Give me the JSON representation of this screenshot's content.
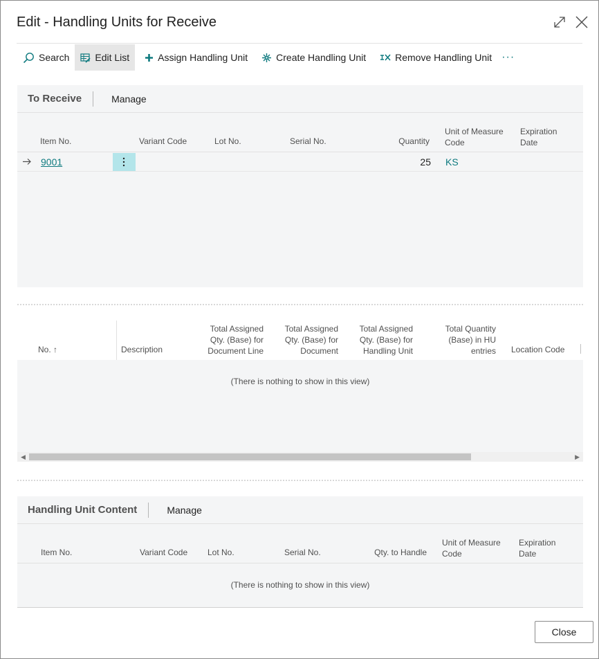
{
  "dialog": {
    "title": "Edit - Handling Units for Receive"
  },
  "toolbar": {
    "search": "Search",
    "edit_list": "Edit List",
    "assign": "Assign Handling Unit",
    "create": "Create Handling Unit",
    "remove": "Remove Handling Unit",
    "more": "···"
  },
  "to_receive": {
    "title": "To Receive",
    "manage": "Manage",
    "columns": {
      "item_no": "Item No.",
      "variant": "Variant Code",
      "lot": "Lot No.",
      "serial": "Serial No.",
      "quantity": "Quantity",
      "uom_line1": "Unit of Measure",
      "uom_line2": "Code",
      "exp_line1": "Expiration",
      "exp_line2": "Date"
    },
    "rows": [
      {
        "item_no": "9001",
        "quantity": "25",
        "uom": "KS"
      }
    ]
  },
  "hu_list": {
    "columns": {
      "no": "No. ↑",
      "description": "Description",
      "tadl_1": "Total Assigned",
      "tadl_2": "Qty. (Base) for",
      "tadl_3": "Document Line",
      "tad_1": "Total Assigned",
      "tad_2": "Qty. (Base) for",
      "tad_3": "Document",
      "tahu_1": "Total Assigned",
      "tahu_2": "Qty. (Base) for",
      "tahu_3": "Handling Unit",
      "tq_1": "Total Quantity",
      "tq_2": "(Base) in HU",
      "tq_3": "entries",
      "location": "Location Code"
    },
    "empty": "(There is nothing to show in this view)"
  },
  "hu_content": {
    "title": "Handling Unit Content",
    "manage": "Manage",
    "columns": {
      "item_no": "Item No.",
      "variant": "Variant Code",
      "lot": "Lot No.",
      "serial": "Serial No.",
      "qty": "Qty. to Handle",
      "uom_line1": "Unit of Measure",
      "uom_line2": "Code",
      "exp_line1": "Expiration",
      "exp_line2": "Date"
    },
    "empty": "(There is nothing to show in this view)"
  },
  "footer": {
    "close": "Close"
  },
  "colors": {
    "accent": "#0e7a7f",
    "selected_cell": "#b3e5ea",
    "panel": "#f4f5f6"
  }
}
